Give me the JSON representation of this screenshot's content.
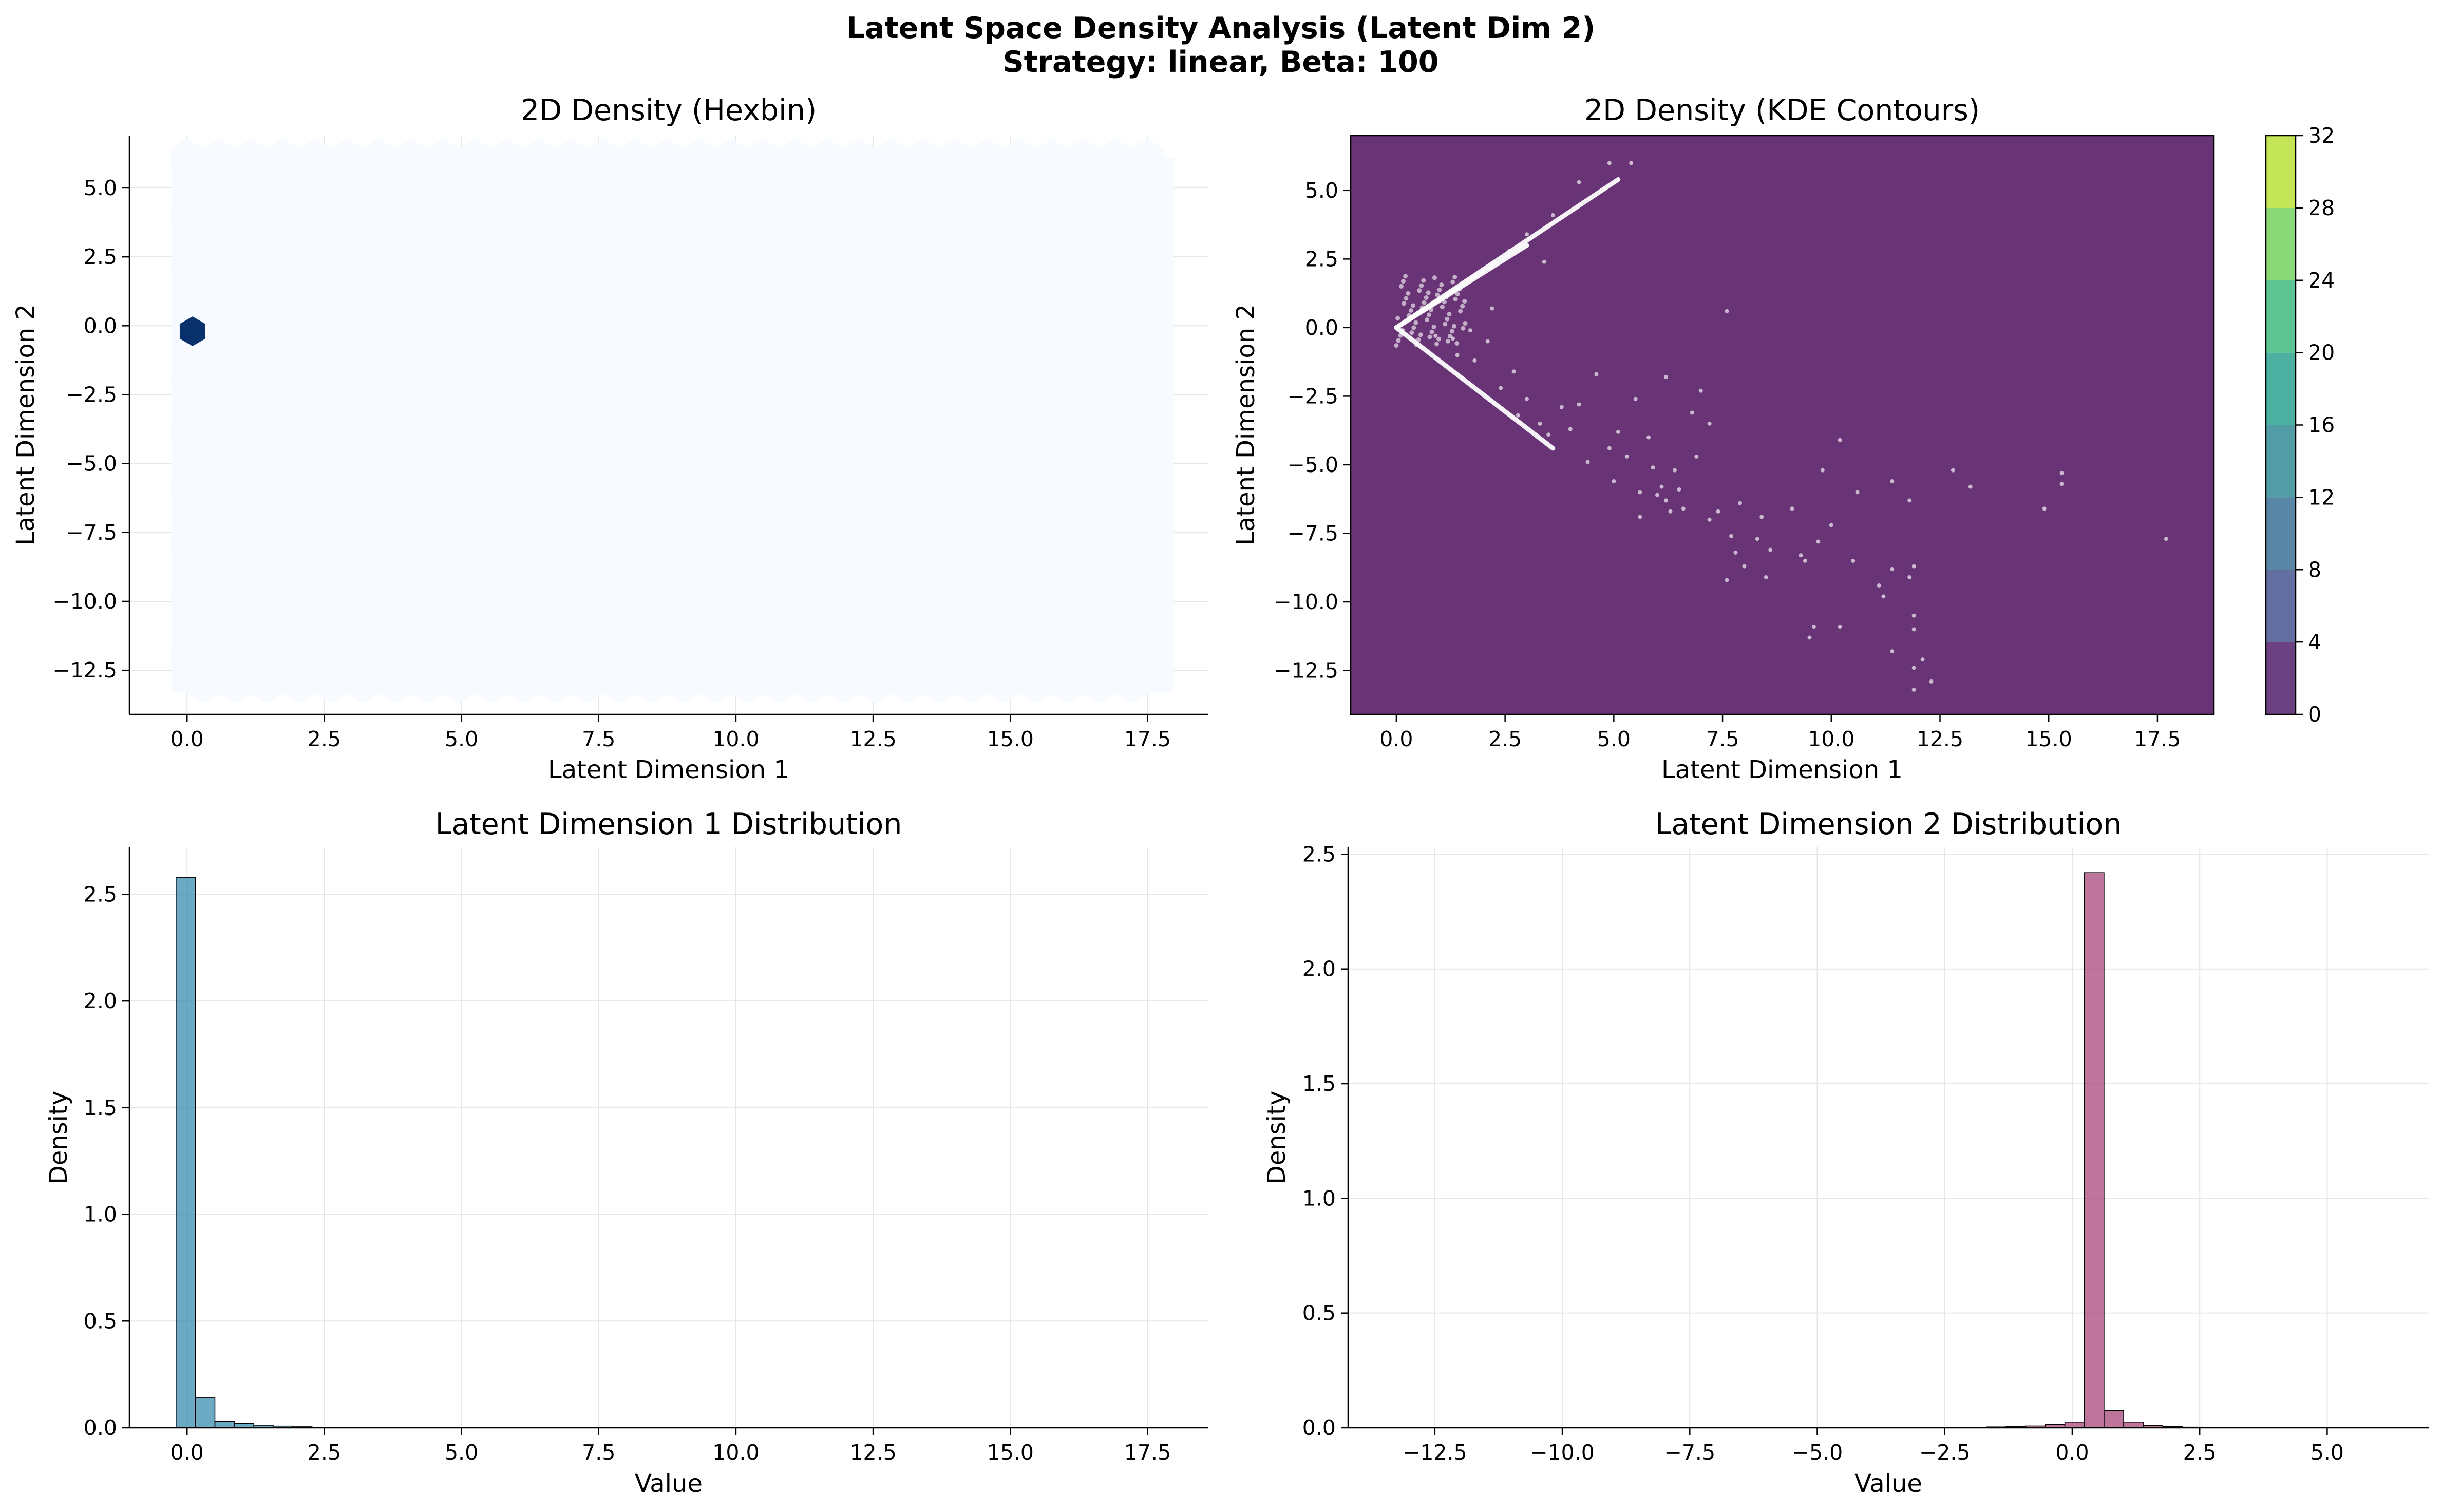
{
  "suptitle_line1": "Latent Space Density Analysis (Latent Dim 2)",
  "suptitle_line2": "Strategy: linear, Beta: 100",
  "colors": {
    "hex_background": "#f7fbff",
    "hex_peak": "#08306b",
    "kde_fill": "#440154",
    "scatter_point": "#ffffff",
    "hist1": "#2e86ab",
    "hist2": "#a23b72",
    "grid": "#e6e6e6",
    "colorbar": [
      "#471164",
      "#3e4a89",
      "#31688e",
      "#26838f",
      "#1f9d8a",
      "#35b779",
      "#6ece58",
      "#b5de2b",
      "#fde725"
    ]
  },
  "chart_data": [
    {
      "type": "heatmap",
      "title": "2D Density (Hexbin)",
      "xlabel": "Latent Dimension 1",
      "ylabel": "Latent Dimension 2",
      "xlim": [
        -1.05,
        18.6
      ],
      "ylim": [
        -14.1,
        6.9
      ],
      "xticks": [
        "0.0",
        "2.5",
        "5.0",
        "7.5",
        "10.0",
        "12.5",
        "15.0",
        "17.5"
      ],
      "xtick_values": [
        0,
        2.5,
        5,
        7.5,
        10,
        12.5,
        15,
        17.5
      ],
      "yticks": [
        "5.0",
        "2.5",
        "0.0",
        "−2.5",
        "−5.0",
        "−7.5",
        "−10.0",
        "−12.5"
      ],
      "ytick_values": [
        5,
        2.5,
        0,
        -2.5,
        -5,
        -7.5,
        -10,
        -12.5
      ],
      "grid": true,
      "extent": {
        "x": [
          0,
          17.7
        ],
        "y": [
          -13.3,
          6.1
        ]
      },
      "peak_bin": {
        "x": 0.1,
        "y": -0.2
      }
    },
    {
      "type": "scatter",
      "title": "2D Density (KDE Contours)",
      "xlabel": "Latent Dimension 1",
      "ylabel": "Latent Dimension 2",
      "xlim": [
        -1.05,
        18.8
      ],
      "ylim": [
        -14.1,
        7.0
      ],
      "xticks": [
        "0.0",
        "2.5",
        "5.0",
        "7.5",
        "10.0",
        "12.5",
        "15.0",
        "17.5"
      ],
      "xtick_values": [
        0,
        2.5,
        5,
        7.5,
        10,
        12.5,
        15,
        17.5
      ],
      "yticks": [
        "5.0",
        "2.5",
        "0.0",
        "−2.5",
        "−5.0",
        "−7.5",
        "−10.0",
        "−12.5"
      ],
      "ytick_values": [
        5,
        2.5,
        0,
        -2.5,
        -5,
        -7.5,
        -10,
        -12.5
      ],
      "colorbar": {
        "levels": [
          0,
          4,
          8,
          12,
          16,
          20,
          24,
          28,
          32
        ],
        "labels": [
          "0",
          "4",
          "8",
          "12",
          "16",
          "20",
          "24",
          "28",
          "32"
        ]
      },
      "streaks": [
        {
          "from": [
            0,
            0
          ],
          "to": [
            5.1,
            5.4
          ]
        },
        {
          "from": [
            0,
            0
          ],
          "to": [
            3.0,
            3.0
          ]
        },
        {
          "from": [
            0,
            0
          ],
          "to": [
            3.6,
            -4.4
          ]
        }
      ],
      "points": [
        [
          5.4,
          6.0
        ],
        [
          4.9,
          6.0
        ],
        [
          4.2,
          5.3
        ],
        [
          3.6,
          4.1
        ],
        [
          3.0,
          3.4
        ],
        [
          3.4,
          2.4
        ],
        [
          2.6,
          2.8
        ],
        [
          7.6,
          0.6
        ],
        [
          2.2,
          0.7
        ],
        [
          1.7,
          -0.1
        ],
        [
          2.1,
          -0.5
        ],
        [
          1.3,
          -0.4
        ],
        [
          0.9,
          -0.3
        ],
        [
          4.6,
          -1.7
        ],
        [
          6.2,
          -1.8
        ],
        [
          5.5,
          -2.6
        ],
        [
          7.0,
          -2.3
        ],
        [
          3.8,
          -2.9
        ],
        [
          4.2,
          -2.8
        ],
        [
          6.8,
          -3.1
        ],
        [
          7.2,
          -3.5
        ],
        [
          5.1,
          -3.8
        ],
        [
          5.8,
          -4.0
        ],
        [
          4.9,
          -4.4
        ],
        [
          4.4,
          -4.9
        ],
        [
          5.3,
          -4.7
        ],
        [
          5.9,
          -5.1
        ],
        [
          6.4,
          -5.2
        ],
        [
          5.0,
          -5.6
        ],
        [
          5.6,
          -6.0
        ],
        [
          6.1,
          -5.8
        ],
        [
          6.6,
          -6.6
        ],
        [
          5.6,
          -6.9
        ],
        [
          6.2,
          -6.3
        ],
        [
          7.4,
          -6.7
        ],
        [
          7.2,
          -7.0
        ],
        [
          7.7,
          -7.6
        ],
        [
          7.9,
          -6.4
        ],
        [
          8.4,
          -6.9
        ],
        [
          8.3,
          -7.7
        ],
        [
          8.6,
          -8.1
        ],
        [
          7.8,
          -8.2
        ],
        [
          7.6,
          -9.2
        ],
        [
          8.5,
          -9.1
        ],
        [
          9.3,
          -8.3
        ],
        [
          9.7,
          -7.8
        ],
        [
          9.4,
          -8.5
        ],
        [
          9.1,
          -6.6
        ],
        [
          10.0,
          -7.2
        ],
        [
          9.8,
          -5.2
        ],
        [
          10.6,
          -6.0
        ],
        [
          11.4,
          -5.6
        ],
        [
          11.8,
          -6.3
        ],
        [
          10.2,
          -4.1
        ],
        [
          10.5,
          -8.5
        ],
        [
          11.1,
          -9.4
        ],
        [
          11.4,
          -8.8
        ],
        [
          11.9,
          -8.7
        ],
        [
          11.8,
          -9.1
        ],
        [
          11.2,
          -9.8
        ],
        [
          11.9,
          -10.5
        ],
        [
          11.9,
          -11.0
        ],
        [
          11.4,
          -11.8
        ],
        [
          11.9,
          -12.4
        ],
        [
          12.1,
          -12.1
        ],
        [
          12.3,
          -12.9
        ],
        [
          11.9,
          -13.2
        ],
        [
          9.5,
          -11.3
        ],
        [
          9.6,
          -10.9
        ],
        [
          10.2,
          -10.9
        ],
        [
          12.8,
          -5.2
        ],
        [
          13.2,
          -5.8
        ],
        [
          14.9,
          -6.6
        ],
        [
          15.3,
          -5.3
        ],
        [
          15.3,
          -5.7
        ],
        [
          17.7,
          -7.7
        ],
        [
          3.3,
          -3.5
        ],
        [
          2.8,
          -3.2
        ],
        [
          2.4,
          -2.2
        ],
        [
          3.0,
          -2.6
        ],
        [
          1.8,
          -1.2
        ],
        [
          1.4,
          -1.0
        ],
        [
          2.7,
          -1.6
        ],
        [
          3.5,
          -3.9
        ],
        [
          4.0,
          -3.7
        ],
        [
          6.9,
          -4.7
        ],
        [
          6.5,
          -5.9
        ],
        [
          6.0,
          -6.1
        ],
        [
          6.3,
          -6.7
        ],
        [
          8.0,
          -8.7
        ]
      ]
    },
    {
      "type": "bar",
      "title": "Latent Dimension 1 Distribution",
      "xlabel": "Value",
      "ylabel": "Density",
      "xlim": [
        -1.05,
        18.6
      ],
      "ylim": [
        0,
        2.72
      ],
      "xticks": [
        "0.0",
        "2.5",
        "5.0",
        "7.5",
        "10.0",
        "12.5",
        "15.0",
        "17.5"
      ],
      "xtick_values": [
        0,
        2.5,
        5,
        7.5,
        10,
        12.5,
        15,
        17.5
      ],
      "yticks": [
        "0.0",
        "0.5",
        "1.0",
        "1.5",
        "2.0",
        "2.5"
      ],
      "ytick_values": [
        0,
        0.5,
        1,
        1.5,
        2,
        2.5
      ],
      "grid": true,
      "bin_start": -0.2,
      "bin_width": 0.354,
      "values": [
        2.58,
        0.14,
        0.03,
        0.02,
        0.012,
        0.008,
        0.005,
        0.003,
        0.002,
        0.001
      ]
    },
    {
      "type": "bar",
      "title": "Latent Dimension 2 Distribution",
      "xlabel": "Value",
      "ylabel": "Density",
      "xlim": [
        -14.2,
        7.0
      ],
      "ylim": [
        0,
        2.53
      ],
      "xticks": [
        "−12.5",
        "−10.0",
        "−7.5",
        "−5.0",
        "−2.5",
        "0.0",
        "2.5",
        "5.0"
      ],
      "xtick_values": [
        -12.5,
        -10,
        -7.5,
        -5,
        -2.5,
        0,
        2.5,
        5
      ],
      "yticks": [
        "0.0",
        "0.5",
        "1.0",
        "1.5",
        "2.0",
        "2.5"
      ],
      "ytick_values": [
        0,
        0.5,
        1,
        1.5,
        2,
        2.5
      ],
      "grid": true,
      "bin_start": -1.68,
      "bin_width": 0.384,
      "values": [
        0.004,
        0.005,
        0.008,
        0.014,
        0.025,
        2.42,
        0.075,
        0.025,
        0.01,
        0.005,
        0.003
      ]
    }
  ]
}
